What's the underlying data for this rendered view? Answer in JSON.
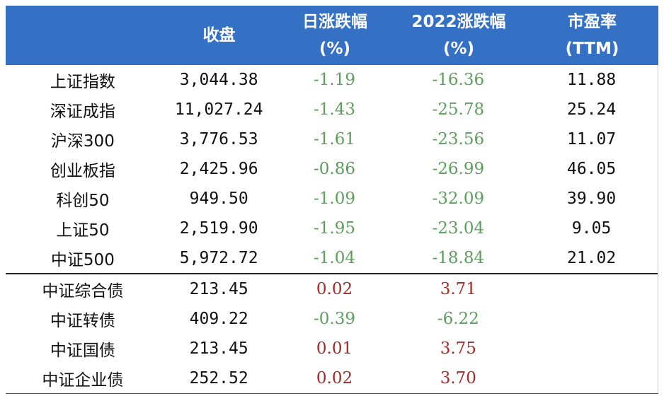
{
  "header": {
    "col0": "",
    "col1": "收盘",
    "col2_line1": "日涨跌幅",
    "col2_line2": "(%)",
    "col3_line1": "2022涨跌幅",
    "col3_line2": "(%)",
    "col4_line1": "市盈率",
    "col4_line2": "(TTM)"
  },
  "colors": {
    "header_bg": "#3470c4",
    "negative": "#5aa05a",
    "positive": "#a52a2a"
  },
  "rows": [
    {
      "name": "上证指数",
      "close": "3,044.38",
      "day": "-1.19",
      "ytd": "-16.36",
      "pe": "11.88"
    },
    {
      "name": "深证成指",
      "close": "11,027.24",
      "day": "-1.43",
      "ytd": "-25.78",
      "pe": "25.24"
    },
    {
      "name": "沪深300",
      "close": "3,776.53",
      "day": "-1.61",
      "ytd": "-23.56",
      "pe": "11.07"
    },
    {
      "name": "创业板指",
      "close": "2,425.96",
      "day": "-0.86",
      "ytd": "-26.99",
      "pe": "46.05"
    },
    {
      "name": "科创50",
      "close": "949.50",
      "day": "-1.09",
      "ytd": "-32.09",
      "pe": "39.90"
    },
    {
      "name": "上证50",
      "close": "2,519.90",
      "day": "-1.95",
      "ytd": "-23.04",
      "pe": "9.05"
    },
    {
      "name": "中证500",
      "close": "5,972.72",
      "day": "-1.04",
      "ytd": "-18.84",
      "pe": "21.02"
    }
  ],
  "bond_rows": [
    {
      "name": "中证综合债",
      "close": "213.45",
      "day": "0.02",
      "ytd": "3.71"
    },
    {
      "name": "中证转债",
      "close": "409.22",
      "day": "-0.39",
      "ytd": "-6.22"
    },
    {
      "name": "中证国债",
      "close": "213.45",
      "day": "0.01",
      "ytd": "3.75"
    },
    {
      "name": "中证企业债",
      "close": "252.52",
      "day": "0.02",
      "ytd": "3.70"
    }
  ]
}
